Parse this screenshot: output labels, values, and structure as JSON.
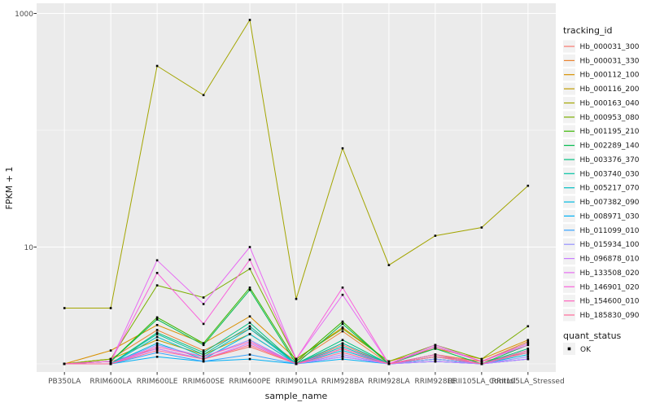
{
  "figure": {
    "background": "#FFFFFF",
    "panel_bg": "#EBEBEB",
    "grid_color": "#FFFFFF",
    "tick_mark_color": "#333333",
    "axis_text_color": "#4D4D4D",
    "point_color": "#000000",
    "legend_key_bg": "#F2F2F2"
  },
  "chart_data": {
    "type": "line",
    "xlabel": "sample_name",
    "ylabel": "FPKM + 1",
    "y_scale": "log10",
    "ylim": [
      0.85,
      1220
    ],
    "grid": "on",
    "legend_position": "right",
    "y_ticks": [
      {
        "value": 1000,
        "label": "1000"
      },
      {
        "value": 10,
        "label": "10"
      }
    ],
    "y_minor_gridlines": [
      100,
      1
    ],
    "categories": [
      "PB350LA",
      "RRIM600LA",
      "RRIM600LE",
      "RRIM600SE",
      "RRIM600PE",
      "RRIM901LA",
      "RRIM928BA",
      "RRIM928LA",
      "RRIM928LE",
      "RRII105LA_Control",
      "RRII105LA_Stressed"
    ],
    "series": [
      {
        "name": "Hb_000031_300",
        "color": "#F8766D",
        "values_fpkm_plus_1": [
          1.0,
          1.05,
          1.35,
          1.1,
          1.4,
          1.0,
          1.45,
          1.0,
          1.15,
          1.05,
          1.25
        ]
      },
      {
        "name": "Hb_000031_330",
        "color": "#EA8331",
        "values_fpkm_plus_1": [
          1.0,
          1.1,
          1.95,
          1.3,
          2.0,
          1.05,
          1.9,
          1.0,
          1.2,
          1.05,
          1.55
        ]
      },
      {
        "name": "Hb_000112_100",
        "color": "#D89000",
        "values_fpkm_plus_1": [
          1.0,
          1.3,
          2.15,
          1.5,
          2.55,
          1.1,
          2.05,
          1.05,
          1.35,
          1.1,
          1.6
        ]
      },
      {
        "name": "Hb_000116_200",
        "color": "#C09B00",
        "values_fpkm_plus_1": [
          1.0,
          1.1,
          1.6,
          1.2,
          1.8,
          1.0,
          1.35,
          1.0,
          1.1,
          1.0,
          1.3
        ]
      },
      {
        "name": "Hb_000163_040",
        "color": "#A3A500",
        "values_fpkm_plus_1": [
          3.0,
          3.0,
          355,
          200,
          880,
          3.6,
          70,
          7.0,
          12.5,
          14.7,
          33.5
        ]
      },
      {
        "name": "Hb_000953_080",
        "color": "#7CAE00",
        "values_fpkm_plus_1": [
          1.0,
          1.1,
          4.7,
          3.7,
          6.5,
          1.1,
          2.0,
          1.05,
          1.45,
          1.1,
          2.1
        ]
      },
      {
        "name": "Hb_001195_210",
        "color": "#39B600",
        "values_fpkm_plus_1": [
          1.0,
          1.05,
          2.5,
          1.5,
          4.5,
          1.05,
          2.3,
          1.0,
          1.4,
          1.05,
          1.5
        ]
      },
      {
        "name": "Hb_002289_140",
        "color": "#00BB4E",
        "values_fpkm_plus_1": [
          1.0,
          1.05,
          2.4,
          1.45,
          4.3,
          1.0,
          2.2,
          1.0,
          1.35,
          1.0,
          1.45
        ]
      },
      {
        "name": "Hb_003376_370",
        "color": "#00BF7D",
        "values_fpkm_plus_1": [
          1.0,
          1.0,
          1.85,
          1.25,
          2.25,
          1.0,
          1.6,
          1.0,
          1.2,
          1.0,
          1.35
        ]
      },
      {
        "name": "Hb_003740_030",
        "color": "#00C1A3",
        "values_fpkm_plus_1": [
          1.0,
          1.0,
          1.8,
          1.2,
          2.1,
          1.0,
          1.5,
          1.0,
          1.15,
          1.0,
          1.3
        ]
      },
      {
        "name": "Hb_005217_070",
        "color": "#00BFC4",
        "values_fpkm_plus_1": [
          1.0,
          1.0,
          1.7,
          1.15,
          2.0,
          1.0,
          1.4,
          1.0,
          1.1,
          1.0,
          1.25
        ]
      },
      {
        "name": "Hb_007382_090",
        "color": "#00BAE0",
        "values_fpkm_plus_1": [
          1.0,
          1.0,
          1.5,
          1.1,
          1.8,
          1.0,
          1.3,
          1.0,
          1.1,
          1.0,
          1.2
        ]
      },
      {
        "name": "Hb_008971_030",
        "color": "#00B0F6",
        "values_fpkm_plus_1": [
          1.0,
          1.0,
          1.15,
          1.05,
          1.1,
          1.0,
          1.1,
          1.0,
          1.05,
          1.0,
          1.1
        ]
      },
      {
        "name": "Hb_011099_010",
        "color": "#35A2FF",
        "values_fpkm_plus_1": [
          1.0,
          1.0,
          1.25,
          1.05,
          1.2,
          1.0,
          1.15,
          1.0,
          1.05,
          1.0,
          1.1
        ]
      },
      {
        "name": "Hb_015934_100",
        "color": "#9590FF",
        "values_fpkm_plus_1": [
          1.0,
          1.0,
          1.45,
          1.15,
          1.6,
          1.0,
          1.2,
          1.0,
          1.1,
          1.0,
          1.15
        ]
      },
      {
        "name": "Hb_096878_010",
        "color": "#C77CFF",
        "values_fpkm_plus_1": [
          1.0,
          1.0,
          1.35,
          1.1,
          1.5,
          1.0,
          1.15,
          1.0,
          1.05,
          1.0,
          1.1
        ]
      },
      {
        "name": "Hb_133508_020",
        "color": "#E76BF3",
        "values_fpkm_plus_1": [
          1.0,
          1.05,
          7.7,
          3.25,
          10.0,
          1.1,
          3.9,
          1.0,
          1.45,
          1.05,
          1.5
        ]
      },
      {
        "name": "Hb_146901_020",
        "color": "#FA62DB",
        "values_fpkm_plus_1": [
          1.0,
          1.05,
          6.0,
          2.2,
          7.8,
          1.1,
          4.5,
          1.0,
          1.4,
          1.05,
          1.45
        ]
      },
      {
        "name": "Hb_154600_010",
        "color": "#FF62BC",
        "values_fpkm_plus_1": [
          1.0,
          1.0,
          1.4,
          1.15,
          1.55,
          1.0,
          1.35,
          1.0,
          1.2,
          1.0,
          1.3
        ]
      },
      {
        "name": "Hb_185830_090",
        "color": "#FF6A98",
        "values_fpkm_plus_1": [
          1.0,
          1.0,
          1.3,
          1.1,
          1.45,
          1.0,
          1.25,
          1.0,
          1.15,
          1.0,
          1.25
        ]
      }
    ],
    "legend": {
      "tracking_title": "tracking_id",
      "quant_title": "quant_status",
      "quant_items": [
        {
          "label": "OK"
        }
      ]
    }
  }
}
